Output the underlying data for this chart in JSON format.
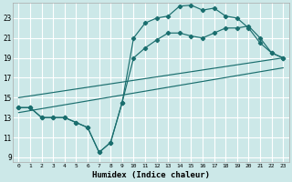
{
  "xlabel": "Humidex (Indice chaleur)",
  "background_color": "#cce8e8",
  "grid_color": "#ffffff",
  "line_color": "#1a6e6e",
  "xlim": [
    -0.5,
    23.5
  ],
  "ylim": [
    8.5,
    24.5
  ],
  "yticks": [
    9,
    11,
    13,
    15,
    17,
    19,
    21,
    23
  ],
  "xticks": [
    0,
    1,
    2,
    3,
    4,
    5,
    6,
    7,
    8,
    9,
    10,
    11,
    12,
    13,
    14,
    15,
    16,
    17,
    18,
    19,
    20,
    21,
    22,
    23
  ],
  "line1_x": [
    0,
    1,
    2,
    3,
    4,
    5,
    6,
    7,
    8,
    9,
    10,
    11,
    12,
    13,
    14,
    15,
    16,
    17,
    18,
    19,
    20,
    21,
    22,
    23
  ],
  "line1_y": [
    14.0,
    14.0,
    13.0,
    13.0,
    13.0,
    12.5,
    12.0,
    9.5,
    10.5,
    14.5,
    21.0,
    22.5,
    23.0,
    23.2,
    24.2,
    24.3,
    23.8,
    24.0,
    23.2,
    23.0,
    22.0,
    20.5,
    19.5,
    19.0
  ],
  "line2_x": [
    0,
    1,
    2,
    3,
    4,
    5,
    6,
    7,
    8,
    9,
    10,
    11,
    12,
    13,
    14,
    15,
    16,
    17,
    18,
    19,
    20,
    21,
    22,
    23
  ],
  "line2_y": [
    14.0,
    14.0,
    13.0,
    13.0,
    13.0,
    12.5,
    12.0,
    9.5,
    10.5,
    14.5,
    19.0,
    20.0,
    20.8,
    21.5,
    21.5,
    21.2,
    21.0,
    21.5,
    22.0,
    22.0,
    22.2,
    21.0,
    19.5,
    19.0
  ],
  "line3_x": [
    0,
    23
  ],
  "line3_y": [
    15.0,
    19.0
  ],
  "line4_x": [
    0,
    23
  ],
  "line4_y": [
    13.5,
    18.0
  ]
}
